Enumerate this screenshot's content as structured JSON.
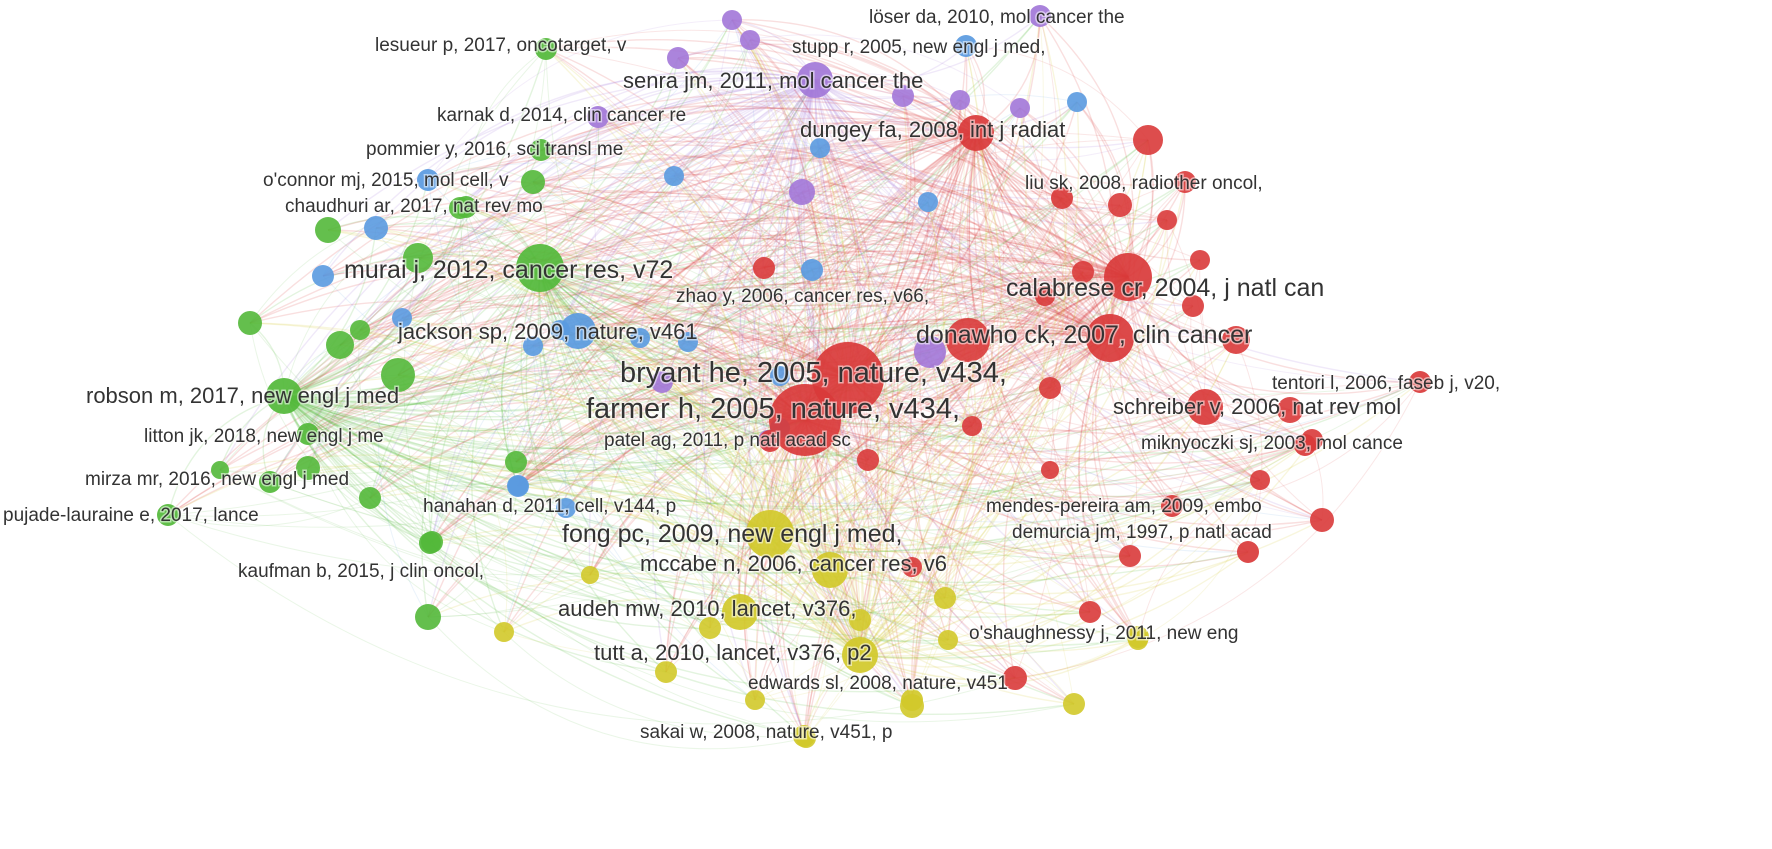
{
  "colors": {
    "red": "#d93a3a",
    "green": "#53b83a",
    "blue": "#5a9ae0",
    "yellow": "#d1c92a",
    "purple": "#a277d8",
    "label": "#333333",
    "background": "#ffffff"
  },
  "nodes": [
    {
      "id": "bryant",
      "label": "bryant he, 2005, nature, v434,",
      "cluster": "red",
      "size": "xlarge"
    },
    {
      "id": "farmer",
      "label": "farmer h, 2005, nature, v434,",
      "cluster": "red",
      "size": "xlarge"
    },
    {
      "id": "calabrese",
      "label": "calabrese cr, 2004, j natl can",
      "cluster": "red",
      "size": "large"
    },
    {
      "id": "donawho",
      "label": "donawho ck, 2007, clin cancer",
      "cluster": "red",
      "size": "large"
    },
    {
      "id": "dungey",
      "label": "dungey fa, 2008, int j radiat",
      "cluster": "red",
      "size": "medium"
    },
    {
      "id": "liu",
      "label": "liu sk, 2008, radiother oncol,",
      "cluster": "red",
      "size": "small"
    },
    {
      "id": "tentori",
      "label": "tentori l, 2006, faseb j, v20,",
      "cluster": "red",
      "size": "small"
    },
    {
      "id": "schreiber",
      "label": "schreiber v, 2006, nat rev mol",
      "cluster": "red",
      "size": "medium"
    },
    {
      "id": "miknyoczki",
      "label": "miknyoczki sj, 2003, mol cance",
      "cluster": "red",
      "size": "small"
    },
    {
      "id": "mendes",
      "label": "mendes-pereira am, 2009, embo",
      "cluster": "red",
      "size": "small"
    },
    {
      "id": "demurcia",
      "label": "demurcia jm, 1997, p natl acad",
      "cluster": "red",
      "size": "small"
    },
    {
      "id": "patel",
      "label": "patel ag, 2011, p natl acad sc",
      "cluster": "red",
      "size": "small"
    },
    {
      "id": "murai",
      "label": "murai j, 2012, cancer res, v72",
      "cluster": "green",
      "size": "large"
    },
    {
      "id": "lesueur",
      "label": "lesueur p, 2017, oncotarget, v",
      "cluster": "green",
      "size": "small"
    },
    {
      "id": "pommier",
      "label": "pommier y, 2016, sci transl me",
      "cluster": "green",
      "size": "small"
    },
    {
      "id": "chaudhuri",
      "label": "chaudhuri ar, 2017, nat rev mo",
      "cluster": "green",
      "size": "small"
    },
    {
      "id": "robson",
      "label": "robson m, 2017, new engl j med",
      "cluster": "green",
      "size": "medium"
    },
    {
      "id": "litton",
      "label": "litton jk, 2018, new engl j me",
      "cluster": "green",
      "size": "small"
    },
    {
      "id": "mirza",
      "label": "mirza mr, 2016, new engl j med",
      "cluster": "green",
      "size": "small"
    },
    {
      "id": "pujade",
      "label": "pujade-lauraine e, 2017, lance",
      "cluster": "green",
      "size": "small"
    },
    {
      "id": "kaufman",
      "label": "kaufman b, 2015, j clin oncol,",
      "cluster": "green",
      "size": "small"
    },
    {
      "id": "oconnor",
      "label": "o'connor mj, 2015, mol cell, v",
      "cluster": "blue",
      "size": "small"
    },
    {
      "id": "jackson",
      "label": "jackson sp, 2009, nature, v461",
      "cluster": "blue",
      "size": "medium"
    },
    {
      "id": "zhao",
      "label": "zhao y, 2006, cancer res, v66,",
      "cluster": "blue",
      "size": "small"
    },
    {
      "id": "hanahan",
      "label": "hanahan d, 2011, cell, v144, p",
      "cluster": "blue",
      "size": "small"
    },
    {
      "id": "stupp",
      "label": "stupp r, 2005, new engl j med,",
      "cluster": "blue",
      "size": "small"
    },
    {
      "id": "loser",
      "label": "löser da, 2010, mol cancer the",
      "cluster": "purple",
      "size": "small"
    },
    {
      "id": "senra",
      "label": "senra jm, 2011, mol cancer the",
      "cluster": "purple",
      "size": "medium"
    },
    {
      "id": "karnak",
      "label": "karnak d, 2014, clin cancer re",
      "cluster": "purple",
      "size": "small"
    },
    {
      "id": "fong",
      "label": "fong pc, 2009, new engl j med,",
      "cluster": "yellow",
      "size": "large"
    },
    {
      "id": "mccabe",
      "label": "mccabe n, 2006, cancer res, v6",
      "cluster": "yellow",
      "size": "medium"
    },
    {
      "id": "audeh",
      "label": "audeh mw, 2010, lancet, v376,",
      "cluster": "yellow",
      "size": "medium"
    },
    {
      "id": "tutt",
      "label": "tutt a, 2010, lancet, v376, p2",
      "cluster": "yellow",
      "size": "medium"
    },
    {
      "id": "edwards",
      "label": "edwards sl, 2008, nature, v451",
      "cluster": "yellow",
      "size": "small"
    },
    {
      "id": "sakai",
      "label": "sakai w, 2008, nature, v451, p",
      "cluster": "yellow",
      "size": "small"
    },
    {
      "id": "oshaughnessy",
      "label": "o'shaughnessy j, 2011, new eng",
      "cluster": "yellow",
      "size": "small"
    }
  ]
}
